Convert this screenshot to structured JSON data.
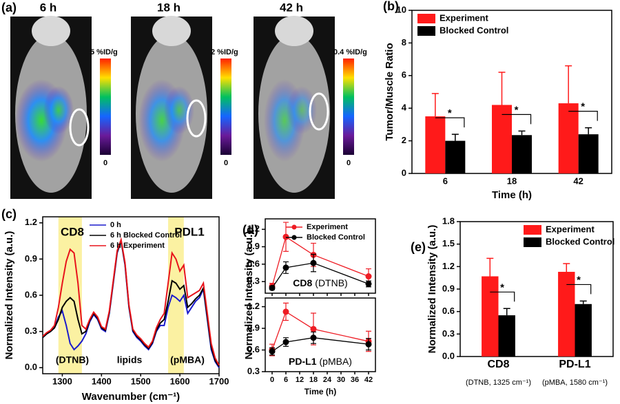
{
  "chart_data": [
    {
      "type": "image",
      "panel_label": "(a)",
      "images": [
        {
          "label": "6 h",
          "scale_max": "5 %ID/g",
          "scale_min": "0"
        },
        {
          "label": "18 h",
          "scale_max": "2 %ID/g",
          "scale_min": "0"
        },
        {
          "label": "42 h",
          "scale_max": "0.4 %ID/g",
          "scale_min": "0"
        }
      ]
    },
    {
      "type": "bar",
      "panel_label": "(b)",
      "y_label": "Tumor/Muscle Ratio",
      "x_label": "Time (h)",
      "categories": [
        "6",
        "18",
        "42"
      ],
      "series": [
        {
          "name": "Experiment",
          "color": "#ff1a1a",
          "values": [
            3.5,
            4.2,
            4.3
          ],
          "errors": [
            1.4,
            2.0,
            2.3
          ]
        },
        {
          "name": "Blocked Control",
          "color": "#000000",
          "values": [
            2.0,
            2.35,
            2.4
          ],
          "errors": [
            0.4,
            0.25,
            0.4
          ]
        }
      ],
      "significance": [
        "*",
        "*",
        "*"
      ],
      "ylim": [
        0,
        10
      ],
      "yticks": [
        0,
        2,
        4,
        6,
        8,
        10
      ],
      "legend": "upper left"
    },
    {
      "type": "line",
      "panel_label": "(c)",
      "y_label": "Normalized Intensity (a.u.)",
      "x_label": "Wavenumber (cm⁻¹)",
      "x": [
        1250,
        1260,
        1270,
        1280,
        1290,
        1300,
        1310,
        1320,
        1330,
        1340,
        1350,
        1360,
        1370,
        1380,
        1390,
        1400,
        1410,
        1420,
        1430,
        1440,
        1450,
        1460,
        1470,
        1480,
        1490,
        1500,
        1510,
        1520,
        1530,
        1540,
        1550,
        1560,
        1570,
        1580,
        1590,
        1600,
        1610,
        1620,
        1630,
        1640,
        1650,
        1660,
        1670,
        1680,
        1690,
        1700
      ],
      "series": [
        {
          "name": "0 h",
          "color": "#1a1acc",
          "values": [
            0.25,
            0.28,
            0.3,
            0.33,
            0.42,
            0.47,
            0.35,
            0.2,
            0.15,
            0.18,
            0.22,
            0.28,
            0.38,
            0.44,
            0.4,
            0.32,
            0.3,
            0.45,
            0.7,
            0.95,
            1.05,
            0.85,
            0.5,
            0.3,
            0.25,
            0.22,
            0.18,
            0.15,
            0.2,
            0.3,
            0.35,
            0.35,
            0.5,
            0.6,
            0.58,
            0.55,
            0.6,
            0.45,
            0.5,
            0.55,
            0.58,
            0.65,
            0.4,
            0.15,
            0.05,
            0.0
          ]
        },
        {
          "name": "6 h Blocked Control",
          "color": "#000000",
          "values": [
            0.25,
            0.28,
            0.3,
            0.33,
            0.4,
            0.5,
            0.55,
            0.58,
            0.55,
            0.4,
            0.28,
            0.3,
            0.39,
            0.45,
            0.41,
            0.33,
            0.31,
            0.46,
            0.71,
            0.96,
            1.05,
            0.86,
            0.51,
            0.31,
            0.26,
            0.23,
            0.19,
            0.16,
            0.21,
            0.31,
            0.37,
            0.4,
            0.55,
            0.72,
            0.7,
            0.65,
            0.68,
            0.5,
            0.53,
            0.57,
            0.6,
            0.66,
            0.42,
            0.17,
            0.06,
            0.01
          ]
        },
        {
          "name": "6 h Experiment",
          "color": "#e8131b",
          "values": [
            0.26,
            0.29,
            0.31,
            0.35,
            0.5,
            0.7,
            0.88,
            0.98,
            0.95,
            0.7,
            0.35,
            0.32,
            0.4,
            0.46,
            0.42,
            0.34,
            0.32,
            0.47,
            0.72,
            0.97,
            1.06,
            0.87,
            0.52,
            0.32,
            0.27,
            0.24,
            0.2,
            0.17,
            0.22,
            0.33,
            0.4,
            0.45,
            0.7,
            0.95,
            0.9,
            0.8,
            0.85,
            0.58,
            0.6,
            0.62,
            0.64,
            0.7,
            0.45,
            0.2,
            0.08,
            0.02
          ]
        }
      ],
      "bands": [
        [
          1290,
          1350
        ],
        [
          1570,
          1610
        ]
      ],
      "annotations": [
        "CD8",
        "PDL1",
        "(DTNB)",
        "lipids",
        "(pMBA)"
      ],
      "xlim": [
        1250,
        1700
      ],
      "xticks": [
        1300,
        1400,
        1500,
        1600,
        1700
      ],
      "ylim": [
        -0.05,
        1.25
      ],
      "yticks": [
        {
          "value": 0,
          "label": "0.0"
        },
        0.3,
        0.6,
        0.9,
        1.2
      ],
      "legend": "upper center"
    },
    {
      "type": "line",
      "panel_label": "(d)",
      "y_label": "Normalized Intensity (a.u.)",
      "label": "CD8",
      "label_note": "(DTNB)",
      "x": [
        0,
        6,
        18,
        42
      ],
      "markers": true,
      "show_xtick_labels": false,
      "series": [
        {
          "name": "Experiment",
          "color": "#ee1c24",
          "values": [
            0.22,
            1.07,
            0.76,
            0.39
          ],
          "errors": [
            0.05,
            0.25,
            0.2,
            0.13
          ]
        },
        {
          "name": "Blocked Control",
          "color": "#000000",
          "values": [
            0.19,
            0.54,
            0.62,
            0.26
          ],
          "errors": [
            0.03,
            0.1,
            0.15,
            0.05
          ]
        }
      ],
      "xlim": [
        -3,
        45
      ],
      "xticks": [
        0,
        6,
        12,
        18,
        24,
        30,
        36,
        42
      ],
      "ylim": [
        0.1,
        1.38
      ],
      "yticks": [
        0.3,
        0.6,
        0.9,
        1.2
      ],
      "legend": "upper right"
    },
    {
      "type": "line",
      "x_label": "Time (h)",
      "label": "PD-L1",
      "label_note": "(pMBA)",
      "x": [
        0,
        6,
        18,
        42
      ],
      "markers": true,
      "show_xtick_labels": true,
      "series": [
        {
          "color": "#ee1c24",
          "values": [
            0.6,
            1.13,
            0.89,
            0.72
          ],
          "errors": [
            0.08,
            0.12,
            0.22,
            0.14
          ]
        },
        {
          "color": "#000000",
          "values": [
            0.58,
            0.71,
            0.77,
            0.68
          ],
          "errors": [
            0.05,
            0.06,
            0.08,
            0.08
          ]
        }
      ],
      "xlim": [
        -3,
        45
      ],
      "xticks": [
        0,
        6,
        12,
        18,
        24,
        30,
        36,
        42
      ],
      "ylim": [
        0.3,
        1.32
      ],
      "yticks": [
        0.3,
        0.6,
        0.9,
        1.2
      ]
    },
    {
      "type": "bar",
      "panel_label": "(e)",
      "y_label": "Normalized Intensity (a.u.)",
      "categories": [
        "CD8",
        "PD-L1"
      ],
      "category_notes": [
        "(DTNB, 1325 cm⁻¹)",
        "(pMBA, 1580 cm⁻¹)"
      ],
      "series": [
        {
          "name": "Experiment",
          "color": "#ff1a1a",
          "values": [
            1.07,
            1.13
          ],
          "errors": [
            0.24,
            0.11
          ]
        },
        {
          "name": "Blocked Control",
          "color": "#000000",
          "values": [
            0.55,
            0.7
          ],
          "errors": [
            0.09,
            0.04
          ]
        }
      ],
      "significance": [
        "*",
        "*"
      ],
      "ylim": [
        0,
        1.8
      ],
      "yticks": [
        {
          "value": 0,
          "label": "0.0"
        },
        0.3,
        0.6,
        0.9,
        1.2,
        1.5,
        1.8
      ],
      "legend": "upper right"
    }
  ]
}
